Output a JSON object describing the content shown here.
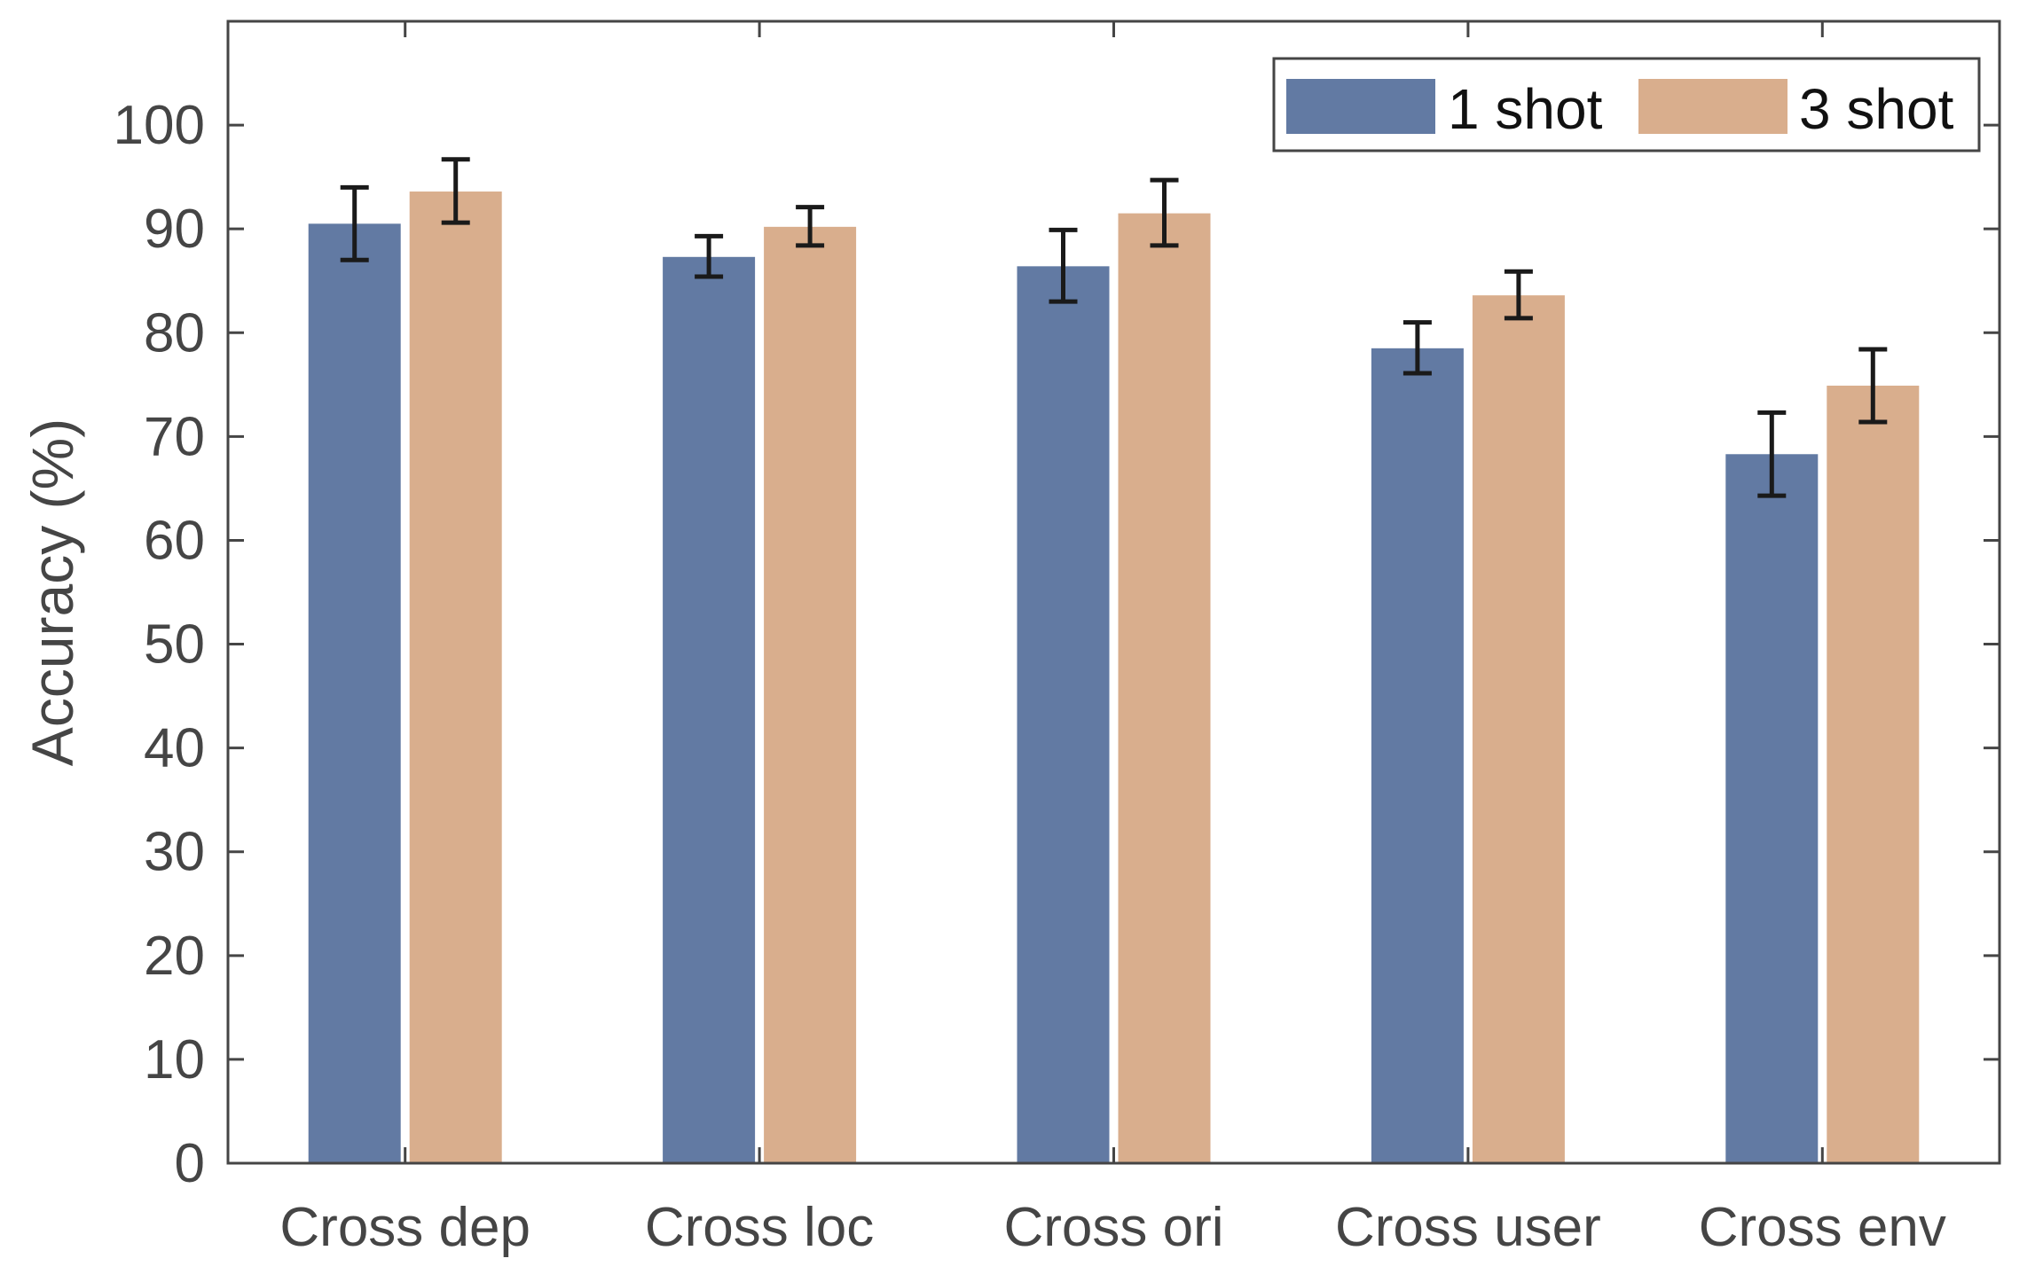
{
  "chart_data": {
    "type": "bar",
    "title": "",
    "xlabel": "",
    "ylabel": "Accuracy (%)",
    "ylim": [
      0,
      110
    ],
    "yticks": [
      0,
      10,
      20,
      30,
      40,
      50,
      60,
      70,
      80,
      90,
      100
    ],
    "grid": false,
    "legend_position": "top-right",
    "categories": [
      "Cross dep",
      "Cross loc",
      "Cross ori",
      "Cross user",
      "Cross env"
    ],
    "series": [
      {
        "name": "1 shot",
        "color": "#627AA3",
        "values": [
          90.5,
          87.3,
          86.4,
          78.5,
          68.3
        ],
        "error_low": [
          87.0,
          85.4,
          83.0,
          76.1,
          64.3
        ],
        "error_high": [
          94.0,
          89.3,
          89.9,
          81.0,
          72.3
        ]
      },
      {
        "name": "3 shot",
        "color": "#D9AE8D",
        "values": [
          93.6,
          90.2,
          91.5,
          83.6,
          74.9
        ],
        "error_low": [
          90.6,
          88.4,
          88.4,
          81.4,
          71.4
        ],
        "error_high": [
          96.7,
          92.1,
          94.7,
          85.9,
          78.4
        ]
      }
    ]
  }
}
